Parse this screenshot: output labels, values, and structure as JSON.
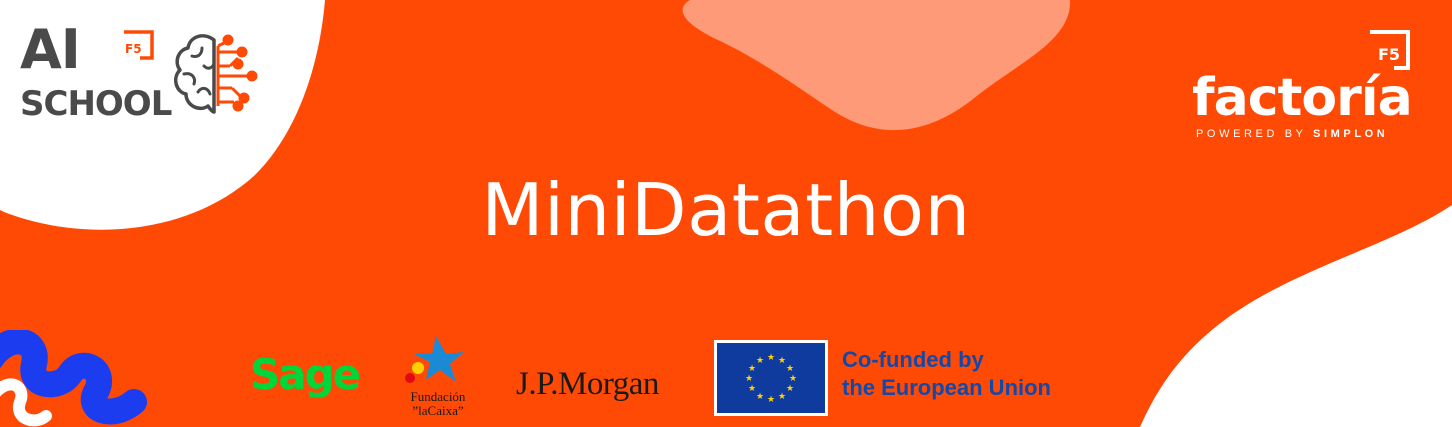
{
  "title": "MiniDatathon",
  "ai_school": {
    "line1": "AI",
    "line2": "SCHOOL",
    "badge": "F5"
  },
  "factoria": {
    "word": "factoría",
    "badge": "F5",
    "powered_prefix": "POWERED BY ",
    "powered_brand": "SIMPLON"
  },
  "sponsors": {
    "sage": "Sage",
    "caixa_line1": "Fundación",
    "caixa_line2": "”laCaixa”",
    "jpmorgan": "J.P.Morgan",
    "eu_line1": "Co-funded by",
    "eu_line2": "the European Union"
  },
  "colors": {
    "background": "#ff4a05",
    "blob": "#ff9a78",
    "white": "#ffffff",
    "logo_gray": "#4a4a4a",
    "sage_green": "#00d639",
    "eu_blue": "#1448a8",
    "squiggle_blue": "#1c3cf0"
  },
  "icons": [
    "brain-circuit-icon",
    "f5-bracket-icon",
    "eu-flag-icon",
    "caixa-star-icon",
    "blue-squiggle-icon"
  ]
}
